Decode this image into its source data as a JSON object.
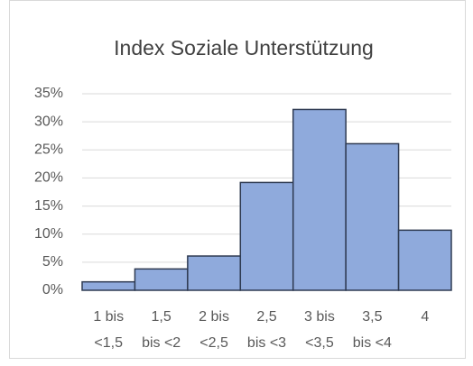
{
  "chart_data": {
    "type": "bar",
    "title": "Index Soziale Unterstützung",
    "categories": [
      "1 bis\n<1,5",
      "1,5\nbis <2",
      "2 bis\n<2,5",
      "2,5\nbis <3",
      "3 bis\n<3,5",
      "3,5\nbis <4",
      "4"
    ],
    "values": [
      1.5,
      3.8,
      6.1,
      19.2,
      32.2,
      26.1,
      10.7
    ],
    "color": "#8faadc",
    "ylim": [
      0,
      35
    ],
    "yticks": [
      {
        "value": 0,
        "label": "0%"
      },
      {
        "value": 5,
        "label": "5%"
      },
      {
        "value": 10,
        "label": "10%"
      },
      {
        "value": 15,
        "label": "15%"
      },
      {
        "value": 20,
        "label": "20%"
      },
      {
        "value": 25,
        "label": "25%"
      },
      {
        "value": 30,
        "label": "30%"
      },
      {
        "value": 35,
        "label": "35%"
      }
    ],
    "grid": true
  }
}
